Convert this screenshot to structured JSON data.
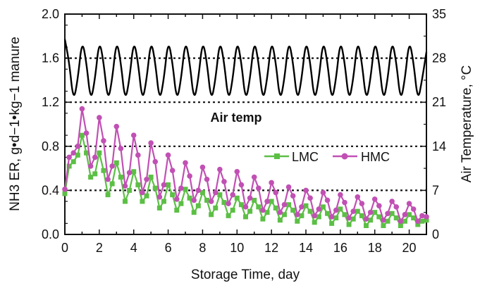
{
  "chart_data": {
    "type": "line",
    "xlabel": "Storage Time, day",
    "ylabel_left": "NH3 ER, g•d−1•kg−1 manure",
    "ylabel_right": "Air Temperature, °C",
    "xlim": [
      0,
      21
    ],
    "ylim_left": [
      0,
      2.0
    ],
    "ylim_right": [
      0,
      35
    ],
    "x_ticks": [
      0,
      2,
      4,
      6,
      8,
      10,
      12,
      14,
      16,
      18,
      20
    ],
    "y_left_ticks": [
      0.0,
      0.4,
      0.8,
      1.2,
      1.6,
      2.0
    ],
    "y_left_tick_labels": [
      "0.0",
      "0.4",
      "0.8",
      "1.2",
      "1.6",
      "2.0"
    ],
    "y_right_ticks": [
      0,
      7,
      14,
      21,
      28,
      35
    ],
    "y_right_tick_labels": [
      "0",
      "7",
      "14",
      "21",
      "28",
      "35"
    ],
    "reference_lines_left": [
      0.4,
      0.8,
      1.2,
      1.6
    ],
    "annotation": "Air temp",
    "legend_position": "center-right",
    "colors": {
      "LMC": "#5cbf45",
      "HMC": "#c150b4",
      "air_temp": "#000000"
    },
    "series": [
      {
        "name": "Air temp",
        "axis": "right",
        "style": "line",
        "x": [
          0.0,
          0.25,
          0.5,
          0.75,
          1.0,
          1.25,
          1.5,
          1.75,
          2.0,
          2.25,
          2.5,
          2.75,
          3.0,
          3.25,
          3.5,
          3.75,
          4.0,
          4.25,
          4.5,
          4.75,
          5.0,
          5.25,
          5.5,
          5.75,
          6.0,
          6.25,
          6.5,
          6.75,
          7.0,
          7.25,
          7.5,
          7.75,
          8.0,
          8.25,
          8.5,
          8.75,
          9.0,
          9.25,
          9.5,
          9.75,
          10.0,
          10.25,
          10.5,
          10.75,
          11.0,
          11.25,
          11.5,
          11.75,
          12.0,
          12.25,
          12.5,
          12.75,
          13.0,
          13.25,
          13.5,
          13.75,
          14.0,
          14.25,
          14.5,
          14.75,
          15.0,
          15.25,
          15.5,
          15.75,
          16.0,
          16.25,
          16.5,
          16.75,
          17.0,
          17.25,
          17.5,
          17.75,
          18.0,
          18.25,
          18.5,
          18.75,
          19.0,
          19.25,
          19.5,
          19.75,
          20.0,
          20.25,
          20.5,
          20.75,
          21.0
        ],
        "values": [
          31.0,
          27.4,
          21.0,
          24.6,
          31.0,
          27.4,
          21.0,
          24.6,
          31.0,
          27.4,
          21.0,
          24.6,
          31.0,
          27.4,
          21.0,
          24.6,
          31.0,
          27.4,
          21.0,
          24.6,
          31.0,
          27.4,
          21.0,
          24.6,
          31.0,
          27.4,
          21.0,
          24.6,
          31.0,
          27.4,
          21.0,
          24.6,
          31.0,
          27.4,
          21.0,
          24.6,
          31.0,
          27.4,
          21.0,
          24.6,
          31.0,
          27.4,
          21.0,
          24.6,
          31.0,
          27.4,
          21.0,
          24.6,
          31.0,
          27.4,
          21.0,
          24.6,
          31.0,
          27.4,
          21.0,
          24.6,
          31.0,
          27.4,
          21.0,
          24.6,
          31.0,
          27.4,
          21.0,
          24.6,
          31.0,
          27.4,
          21.0,
          24.6,
          31.0,
          27.4,
          21.0,
          24.6,
          31.0,
          27.4,
          21.0,
          24.6,
          31.0,
          27.4,
          21.0,
          24.6,
          31.0,
          27.4,
          21.0,
          24.6,
          29.0
        ]
      },
      {
        "name": "LMC",
        "axis": "left",
        "style": "line-square-markers",
        "x": [
          0.0,
          0.25,
          0.5,
          0.75,
          1.0,
          1.25,
          1.5,
          1.75,
          2.0,
          2.25,
          2.5,
          2.75,
          3.0,
          3.25,
          3.5,
          3.75,
          4.0,
          4.25,
          4.5,
          4.75,
          5.0,
          5.25,
          5.5,
          5.75,
          6.0,
          6.25,
          6.5,
          6.75,
          7.0,
          7.25,
          7.5,
          7.75,
          8.0,
          8.25,
          8.5,
          8.75,
          9.0,
          9.25,
          9.5,
          9.75,
          10.0,
          10.25,
          10.5,
          10.75,
          11.0,
          11.25,
          11.5,
          11.75,
          12.0,
          12.25,
          12.5,
          12.75,
          13.0,
          13.25,
          13.5,
          13.75,
          14.0,
          14.25,
          14.5,
          14.75,
          15.0,
          15.25,
          15.5,
          15.75,
          16.0,
          16.25,
          16.5,
          16.75,
          17.0,
          17.25,
          17.5,
          17.75,
          18.0,
          18.25,
          18.5,
          18.75,
          19.0,
          19.25,
          19.5,
          19.75,
          20.0,
          20.25,
          20.5,
          20.75,
          21.0
        ],
        "values": [
          0.37,
          0.62,
          0.66,
          0.72,
          0.9,
          0.74,
          0.52,
          0.55,
          0.74,
          0.58,
          0.36,
          0.46,
          0.65,
          0.52,
          0.3,
          0.4,
          0.57,
          0.45,
          0.3,
          0.35,
          0.52,
          0.42,
          0.24,
          0.3,
          0.45,
          0.36,
          0.22,
          0.28,
          0.41,
          0.33,
          0.2,
          0.26,
          0.38,
          0.31,
          0.18,
          0.24,
          0.36,
          0.29,
          0.17,
          0.22,
          0.33,
          0.27,
          0.16,
          0.21,
          0.31,
          0.25,
          0.14,
          0.2,
          0.3,
          0.24,
          0.13,
          0.18,
          0.27,
          0.22,
          0.12,
          0.17,
          0.26,
          0.21,
          0.11,
          0.16,
          0.25,
          0.19,
          0.1,
          0.15,
          0.23,
          0.18,
          0.09,
          0.14,
          0.21,
          0.17,
          0.08,
          0.13,
          0.2,
          0.16,
          0.08,
          0.12,
          0.19,
          0.15,
          0.08,
          0.12,
          0.18,
          0.15,
          0.09,
          0.12,
          0.13
        ]
      },
      {
        "name": "HMC",
        "axis": "left",
        "style": "line-circle-markers",
        "x": [
          0.0,
          0.25,
          0.5,
          0.75,
          1.0,
          1.25,
          1.5,
          1.75,
          2.0,
          2.25,
          2.5,
          2.75,
          3.0,
          3.25,
          3.5,
          3.75,
          4.0,
          4.25,
          4.5,
          4.75,
          5.0,
          5.25,
          5.5,
          5.75,
          6.0,
          6.25,
          6.5,
          6.75,
          7.0,
          7.25,
          7.5,
          7.75,
          8.0,
          8.25,
          8.5,
          8.75,
          9.0,
          9.25,
          9.5,
          9.75,
          10.0,
          10.25,
          10.5,
          10.75,
          11.0,
          11.25,
          11.5,
          11.75,
          12.0,
          12.25,
          12.5,
          12.75,
          13.0,
          13.25,
          13.5,
          13.75,
          14.0,
          14.25,
          14.5,
          14.75,
          15.0,
          15.25,
          15.5,
          15.75,
          16.0,
          16.25,
          16.5,
          16.75,
          17.0,
          17.25,
          17.5,
          17.75,
          18.0,
          18.25,
          18.5,
          18.75,
          19.0,
          19.25,
          19.5,
          19.75,
          20.0,
          20.25,
          20.5,
          20.75,
          21.0
        ],
        "values": [
          0.41,
          0.7,
          0.74,
          0.8,
          1.14,
          0.92,
          0.62,
          0.7,
          1.06,
          0.85,
          0.5,
          0.62,
          0.98,
          0.78,
          0.44,
          0.56,
          0.9,
          0.72,
          0.38,
          0.5,
          0.83,
          0.66,
          0.34,
          0.45,
          0.72,
          0.58,
          0.32,
          0.42,
          0.65,
          0.53,
          0.31,
          0.4,
          0.61,
          0.5,
          0.3,
          0.38,
          0.59,
          0.48,
          0.28,
          0.36,
          0.57,
          0.45,
          0.25,
          0.33,
          0.52,
          0.42,
          0.22,
          0.3,
          0.47,
          0.38,
          0.2,
          0.27,
          0.43,
          0.35,
          0.18,
          0.25,
          0.4,
          0.33,
          0.17,
          0.23,
          0.38,
          0.31,
          0.16,
          0.22,
          0.36,
          0.29,
          0.15,
          0.21,
          0.34,
          0.28,
          0.14,
          0.2,
          0.32,
          0.26,
          0.13,
          0.19,
          0.3,
          0.25,
          0.12,
          0.18,
          0.28,
          0.23,
          0.12,
          0.17,
          0.16
        ]
      }
    ]
  }
}
